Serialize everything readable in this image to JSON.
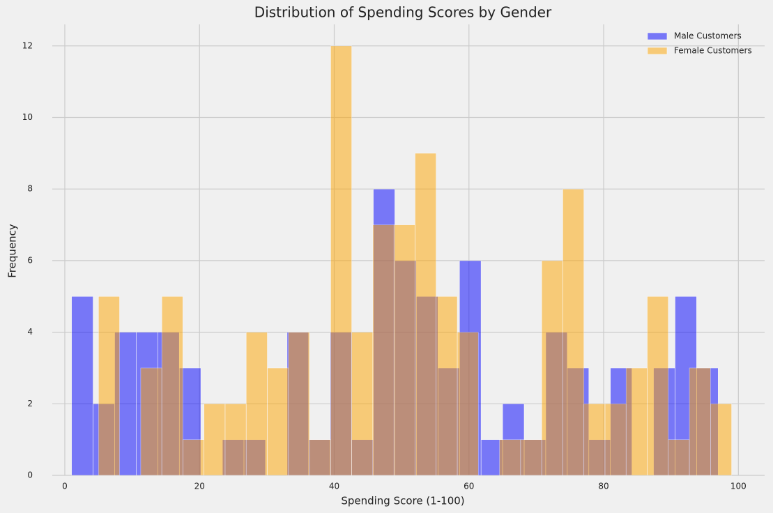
{
  "chart_data": {
    "type": "histogram",
    "title": "Distribution of Spending Scores by Gender",
    "xlabel": "Spending Score (1-100)",
    "ylabel": "Frequency",
    "series": [
      {
        "name": "Male Customers",
        "color": "#0000ff",
        "bins": [
          1,
          4.2,
          7.4,
          10.6,
          13.8,
          17,
          20.2,
          23.4,
          26.6,
          29.8,
          33,
          36.2,
          39.4,
          42.6,
          45.8,
          49,
          52.2,
          55.4,
          58.6,
          61.8,
          65,
          68.2,
          71.4,
          74.6,
          77.8,
          81,
          84.2,
          87.4,
          90.6,
          93.8,
          97
        ],
        "values": [
          5,
          2,
          4,
          4,
          4,
          3,
          0,
          1,
          1,
          0,
          4,
          1,
          4,
          1,
          8,
          6,
          5,
          3,
          6,
          1,
          2,
          1,
          4,
          3,
          1,
          3,
          0,
          3,
          5,
          3
        ]
      },
      {
        "name": "Female Customers",
        "color": "#ffa500",
        "bins": [
          5,
          8.13,
          11.27,
          14.4,
          17.53,
          20.67,
          23.8,
          26.93,
          30.07,
          33.2,
          36.33,
          39.47,
          42.6,
          45.73,
          48.87,
          52,
          55.13,
          58.27,
          61.4,
          64.53,
          67.67,
          70.8,
          73.93,
          77.07,
          80.2,
          83.33,
          86.47,
          89.6,
          92.73,
          95.87,
          99
        ],
        "values": [
          5,
          0,
          3,
          5,
          1,
          2,
          2,
          4,
          3,
          4,
          1,
          12,
          4,
          7,
          7,
          9,
          5,
          4,
          0,
          1,
          1,
          6,
          8,
          2,
          2,
          3,
          5,
          1,
          3,
          2
        ]
      }
    ],
    "xlim": [
      -1.86,
      103.9
    ],
    "xticks": [
      0,
      20,
      40,
      60,
      80,
      100
    ],
    "ylim": [
      0,
      12.6
    ],
    "yticks": [
      0,
      2,
      4,
      6,
      8,
      10,
      12
    ],
    "grid": true,
    "legend": "upper right"
  }
}
